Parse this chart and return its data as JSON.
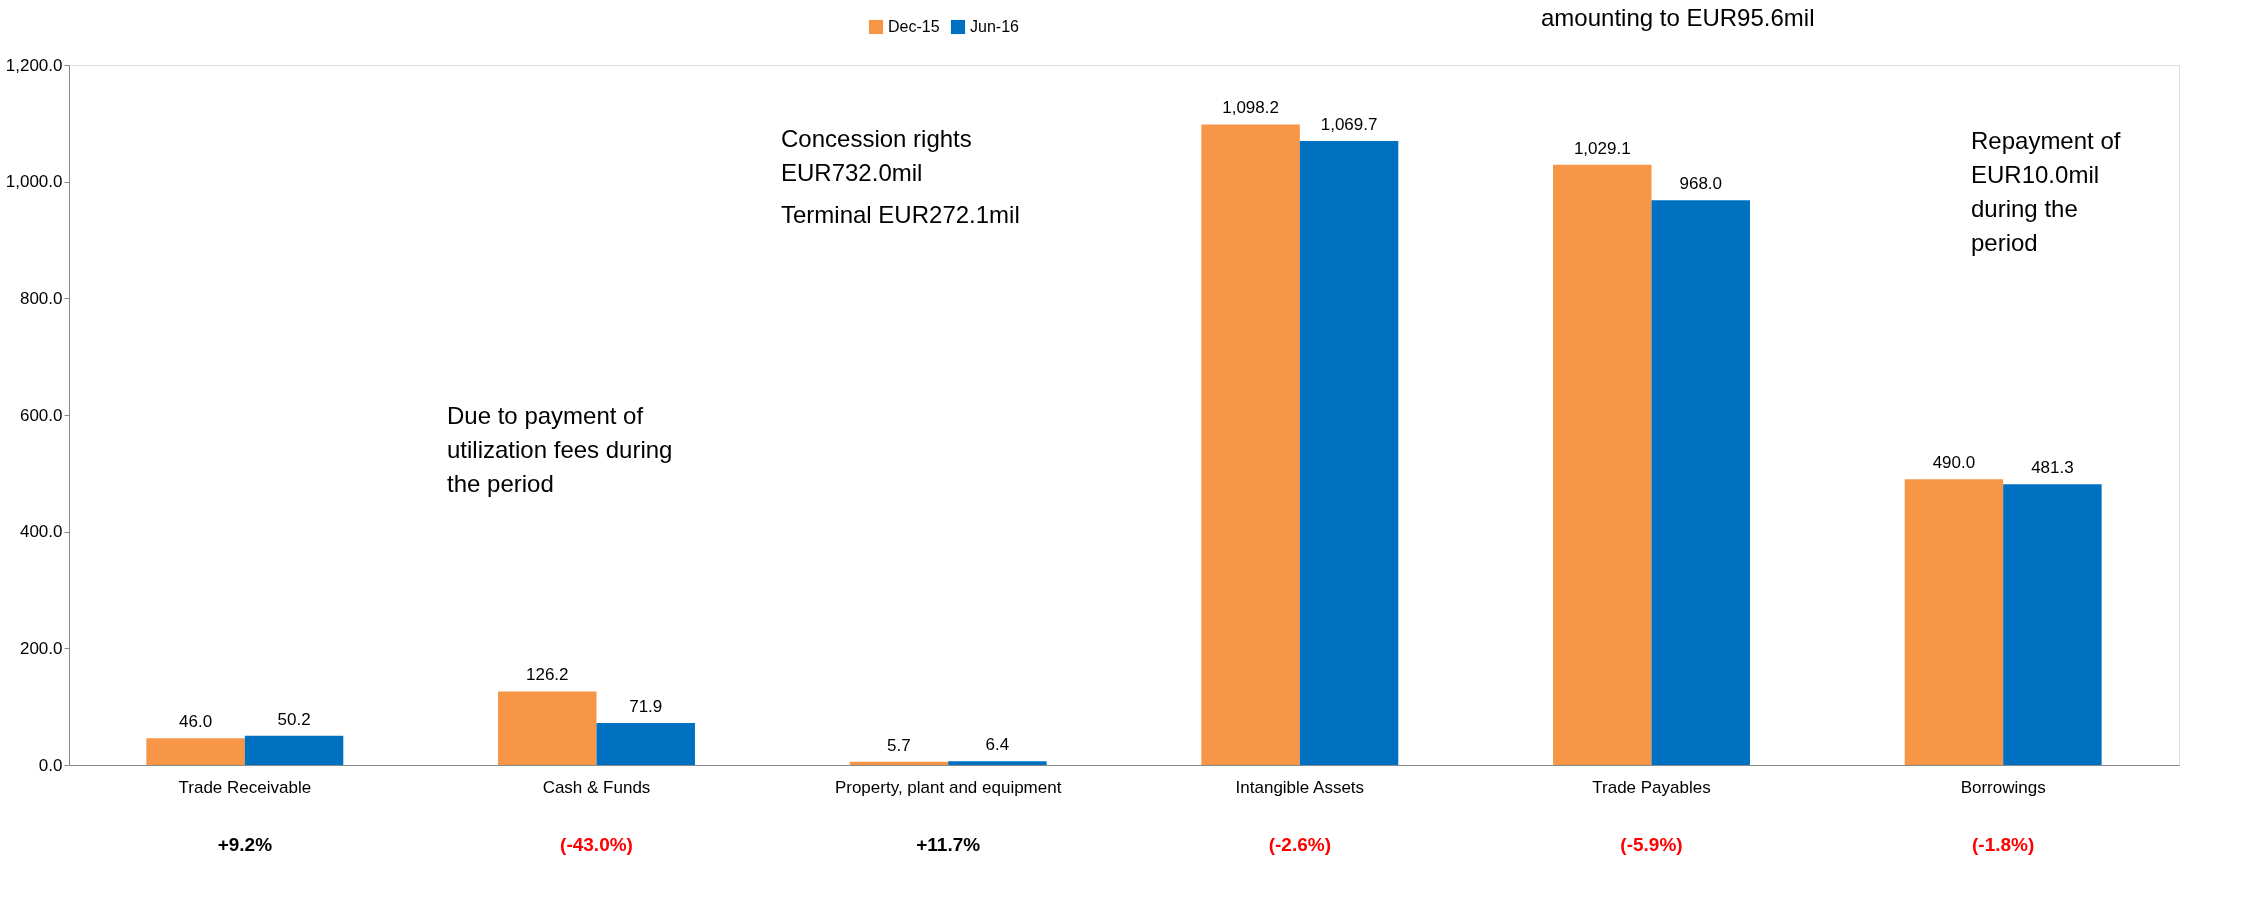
{
  "chart_data": {
    "type": "bar",
    "categories": [
      "Trade Receivable",
      "Cash & Funds",
      "Property, plant and equipment",
      "Intangible Assets",
      "Trade Payables",
      "Borrowings"
    ],
    "series": [
      {
        "name": "Dec-15",
        "color": "#f79646",
        "values": [
          46.0,
          126.2,
          5.7,
          1098.2,
          1029.1,
          490.0
        ],
        "value_labels": [
          "46.0",
          "126.2",
          "5.7",
          "1,098.2",
          "1,029.1",
          "490.0"
        ]
      },
      {
        "name": "Jun-16",
        "color": "#0070c0",
        "values": [
          50.2,
          71.9,
          6.4,
          1069.7,
          968.0,
          481.3
        ],
        "value_labels": [
          "50.2",
          "71.9",
          "6.4",
          "1,069.7",
          "968.0",
          "481.3"
        ]
      }
    ],
    "ylim": [
      0,
      1200
    ],
    "yticks": [
      {
        "value": 0,
        "label": "0.0"
      },
      {
        "value": 200,
        "label": "200.0"
      },
      {
        "value": 400,
        "label": "400.0"
      },
      {
        "value": 600,
        "label": "600.0"
      },
      {
        "value": 800,
        "label": "800.0"
      },
      {
        "value": 1000,
        "label": "1,000.0"
      },
      {
        "value": 1200,
        "label": "1,200.0"
      }
    ],
    "grid": false,
    "legend": "top",
    "annotations": [
      "+9.2%",
      "(-43.0%)",
      "+11.7%",
      "(-2.6%)",
      "(-5.9%)",
      "(-1.8%)",
      "Due to payment of utilization fees during the period",
      "Concession rights EUR732.0mil",
      "Terminal EUR272.1mil",
      "amounting to EUR95.6mil",
      "Repayment of EUR10.0mil during the period"
    ]
  }
}
